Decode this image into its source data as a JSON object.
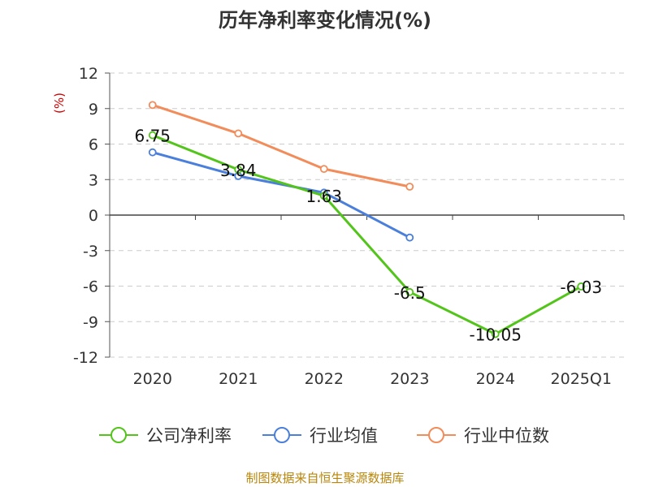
{
  "chart_data": {
    "type": "line",
    "title": "历年净利率变化情况(%)",
    "ylabel": "(%)",
    "xlabel": "",
    "categories": [
      "2020",
      "2021",
      "2022",
      "2023",
      "2024",
      "2025Q1"
    ],
    "ylim": [
      -12,
      12
    ],
    "yticks": [
      12,
      9,
      6,
      3,
      0,
      -3,
      -6,
      -9,
      -12
    ],
    "grid": "horizontal-dashed",
    "legend_position": "bottom",
    "series": [
      {
        "name": "公司净利率",
        "color": "#52c41a",
        "values": [
          6.75,
          3.84,
          1.63,
          -6.5,
          -10.05,
          -6.03
        ],
        "labels": [
          "6.75",
          "3.84",
          "1.63",
          "-6.5",
          "-10.05",
          "-6.03"
        ]
      },
      {
        "name": "行业均值",
        "color": "#4a7fdb",
        "values": [
          5.3,
          3.3,
          1.9,
          -1.9,
          null,
          null
        ]
      },
      {
        "name": "行业中位数",
        "color": "#f28c5a",
        "values": [
          9.3,
          6.9,
          3.9,
          2.4,
          null,
          null
        ]
      }
    ],
    "source": "制图数据来自恒生聚源数据库"
  }
}
